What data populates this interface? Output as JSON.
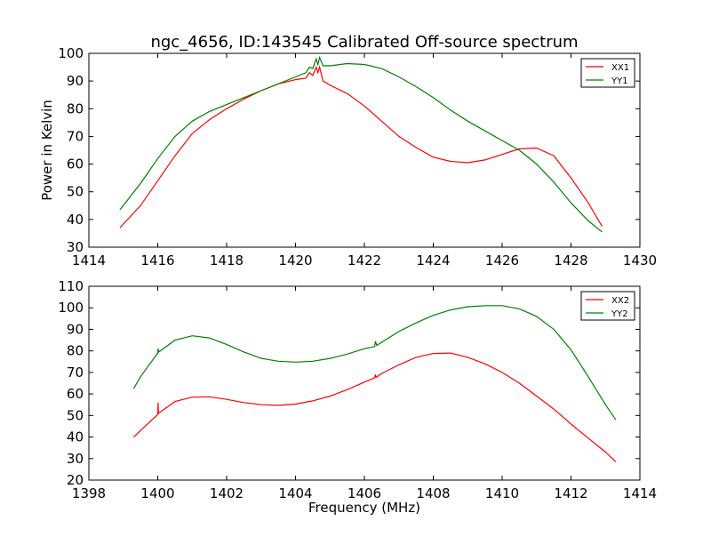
{
  "chart_data": [
    {
      "type": "line",
      "title": "ngc_4656, ID:143545 Calibrated Off-source spectrum",
      "xlabel": "",
      "ylabel": "Power in Kelvin",
      "xlim": [
        1414,
        1430
      ],
      "ylim": [
        30,
        100
      ],
      "xticks": [
        1414,
        1416,
        1418,
        1420,
        1422,
        1424,
        1426,
        1428,
        1430
      ],
      "yticks": [
        30,
        40,
        50,
        60,
        70,
        80,
        90,
        100
      ],
      "legend": "top-right",
      "series": [
        {
          "name": "XX1",
          "color": "#ff0000",
          "x": [
            1414.9,
            1415.5,
            1416,
            1416.5,
            1417,
            1417.5,
            1418,
            1418.5,
            1419,
            1419.5,
            1420,
            1420.3,
            1420.4,
            1420.5,
            1420.6,
            1420.65,
            1420.7,
            1420.8,
            1421,
            1421.5,
            1422,
            1422.5,
            1423,
            1423.5,
            1424,
            1424.5,
            1425,
            1425.5,
            1426,
            1426.5,
            1427,
            1427.5,
            1428,
            1428.5,
            1428.9
          ],
          "y": [
            37,
            45,
            54,
            63,
            71,
            76,
            80,
            83.5,
            86.5,
            89,
            90.5,
            91,
            93,
            92,
            95,
            93,
            95,
            90,
            88.5,
            85.5,
            81,
            75.5,
            70,
            66,
            62.5,
            61,
            60.5,
            61.5,
            63.5,
            65.5,
            65.8,
            63,
            55,
            46,
            37.5
          ]
        },
        {
          "name": "YY1",
          "color": "#008000",
          "x": [
            1414.9,
            1415.5,
            1416,
            1416.5,
            1417,
            1417.5,
            1418,
            1418.5,
            1419,
            1419.5,
            1420,
            1420.3,
            1420.4,
            1420.5,
            1420.6,
            1420.65,
            1420.7,
            1420.8,
            1421,
            1421.5,
            1422,
            1422.5,
            1423,
            1423.5,
            1424,
            1424.5,
            1425,
            1425.5,
            1426,
            1426.5,
            1427,
            1427.5,
            1428,
            1428.5,
            1428.9
          ],
          "y": [
            43.5,
            53,
            62,
            70,
            75.5,
            79,
            81.5,
            84,
            86.5,
            89,
            91.5,
            93,
            95,
            94.5,
            98,
            96,
            98.5,
            95.5,
            95.5,
            96.3,
            96,
            94.5,
            91.5,
            88,
            84,
            79.5,
            75.5,
            72,
            68.5,
            65,
            60,
            53.5,
            46,
            39.5,
            35.5
          ]
        }
      ]
    },
    {
      "type": "line",
      "title": "",
      "xlabel": "Frequency (MHz)",
      "ylabel": "",
      "xlim": [
        1398,
        1414
      ],
      "ylim": [
        20,
        110
      ],
      "xticks": [
        1398,
        1400,
        1402,
        1404,
        1406,
        1408,
        1410,
        1412,
        1414
      ],
      "yticks": [
        20,
        30,
        40,
        50,
        60,
        70,
        80,
        90,
        100,
        110
      ],
      "legend": "top-right",
      "series": [
        {
          "name": "XX2",
          "color": "#ff0000",
          "x": [
            1399.3,
            1399.5,
            1400,
            1400.01,
            1400.02,
            1400.5,
            1401,
            1401.5,
            1402,
            1402.5,
            1403,
            1403.5,
            1404,
            1404.5,
            1405,
            1405.5,
            1406,
            1406.3,
            1406.32,
            1406.34,
            1406.5,
            1407,
            1407.5,
            1408,
            1408.5,
            1409,
            1409.5,
            1410,
            1410.5,
            1411,
            1411.5,
            1412,
            1412.5,
            1413,
            1413.3
          ],
          "y": [
            40,
            43,
            50.5,
            56,
            51,
            56.5,
            58.5,
            58.7,
            57.5,
            56,
            55,
            54.7,
            55.3,
            56.8,
            59,
            62,
            65.5,
            67.5,
            69,
            67.7,
            69.5,
            73.5,
            77,
            78.8,
            79,
            77,
            74,
            70,
            65,
            59,
            53,
            46,
            39.5,
            33,
            28.5
          ]
        },
        {
          "name": "YY2",
          "color": "#008000",
          "x": [
            1399.3,
            1399.5,
            1400,
            1400.01,
            1400.03,
            1400.5,
            1401,
            1401.5,
            1402,
            1402.5,
            1403,
            1403.5,
            1404,
            1404.5,
            1405,
            1405.5,
            1406,
            1406.3,
            1406.32,
            1406.36,
            1406.5,
            1407,
            1407.5,
            1408,
            1408.5,
            1409,
            1409.5,
            1410,
            1410.5,
            1411,
            1411.5,
            1412,
            1412.5,
            1413,
            1413.3
          ],
          "y": [
            62.5,
            68,
            79,
            81,
            79.5,
            85,
            87,
            86,
            83,
            79.5,
            76.5,
            75.2,
            74.8,
            75.2,
            76.5,
            78.5,
            81,
            82,
            84.5,
            82.5,
            84,
            89,
            93,
            96.5,
            99,
            100.5,
            101,
            101,
            99.5,
            96,
            90,
            80.5,
            68,
            55,
            48
          ]
        }
      ]
    }
  ]
}
